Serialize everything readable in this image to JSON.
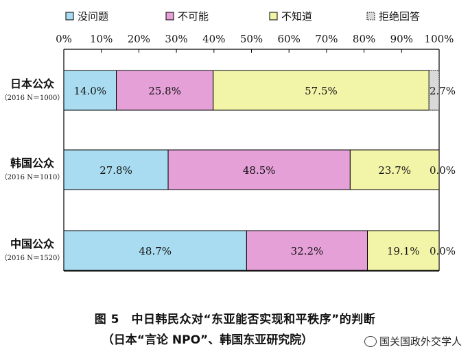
{
  "chart_data": {
    "type": "bar",
    "orientation": "horizontal",
    "stacked": true,
    "categories": [
      {
        "name": "日本公众",
        "sub": "（2016 N＝1000）"
      },
      {
        "name": "韩国公众",
        "sub": "（2016 N＝1010）"
      },
      {
        "name": "中国公众",
        "sub": "（2016 N＝1520）"
      }
    ],
    "series": [
      {
        "name": "没问题",
        "color": "#a9dcf0",
        "values": [
          14.0,
          27.8,
          48.7
        ],
        "labels": [
          "14.0%",
          "27.8%",
          "48.7%"
        ]
      },
      {
        "name": "不可能",
        "color": "#e5a0d8",
        "values": [
          25.8,
          48.5,
          32.2
        ],
        "labels": [
          "25.8%",
          "48.5%",
          "32.2%"
        ]
      },
      {
        "name": "不知道",
        "color": "#f2f5a8",
        "values": [
          57.5,
          23.7,
          19.1
        ],
        "labels": [
          "57.5%",
          "23.7%",
          "19.1%"
        ]
      },
      {
        "name": "拒绝回答",
        "color": "#d9d9d9",
        "values": [
          2.7,
          0.0,
          0.0
        ],
        "labels": [
          "2.7%",
          "0.0%",
          "0.0%"
        ]
      }
    ],
    "x_ticks": [
      "0%",
      "10%",
      "20%",
      "30%",
      "40%",
      "50%",
      "60%",
      "70%",
      "80%",
      "90%",
      "100%"
    ],
    "xlim": [
      0,
      100
    ],
    "legend_position": "top",
    "grid": false
  },
  "caption": {
    "line1": "图 5　中日韩民众对“东亚能否实现和平秩序”的判断",
    "line2": "（日本“言论 NPO”、韩国东亚研究院）"
  },
  "watermark": "国关国政外交学人"
}
